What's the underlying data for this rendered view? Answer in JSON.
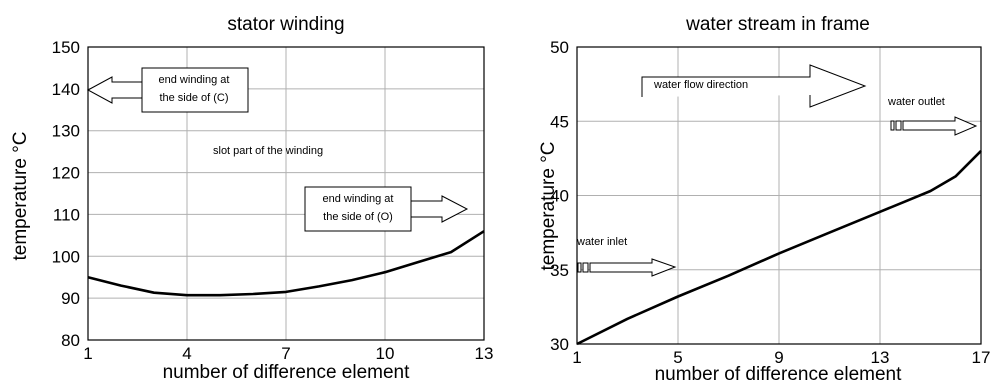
{
  "chart_data": [
    {
      "type": "line",
      "title": "stator winding",
      "xlabel": "number of difference element",
      "ylabel": "temperature  °C",
      "x_ticks": [
        1,
        4,
        7,
        10,
        13
      ],
      "y_ticks": [
        80,
        90,
        100,
        110,
        120,
        130,
        140,
        150
      ],
      "xlim": [
        1,
        13
      ],
      "ylim": [
        80,
        150
      ],
      "grid": true,
      "series": [
        {
          "x": [
            1,
            2,
            3,
            4,
            5,
            6,
            7,
            8,
            9,
            10,
            11,
            12,
            13
          ],
          "y": [
            95,
            93,
            91.3,
            90.7,
            90.7,
            91,
            91.5,
            92.8,
            94.3,
            96.2,
            98.6,
            101,
            106
          ]
        }
      ],
      "annotations": {
        "end_winding_c": [
          "end winding at",
          "the side of (C)"
        ],
        "slot_part": "slot part of the winding",
        "end_winding_o": [
          "end winding at",
          "the side of (O)"
        ]
      }
    },
    {
      "type": "line",
      "title": "water stream in frame",
      "xlabel": "number of difference element",
      "ylabel": "temperature  °C",
      "x_ticks": [
        1,
        5,
        9,
        13,
        17
      ],
      "y_ticks": [
        30,
        35,
        40,
        45,
        50
      ],
      "xlim": [
        1,
        17
      ],
      "ylim": [
        30,
        50
      ],
      "grid": true,
      "series": [
        {
          "x": [
            1,
            3,
            5,
            7,
            9,
            11,
            13,
            14,
            15,
            16,
            17
          ],
          "y": [
            30,
            31.7,
            33.2,
            34.6,
            36.1,
            37.5,
            38.9,
            39.6,
            40.3,
            41.3,
            43
          ]
        }
      ],
      "annotations": {
        "water_flow": "water flow direction",
        "water_outlet": "water outlet",
        "water_inlet": "water inlet"
      }
    }
  ]
}
